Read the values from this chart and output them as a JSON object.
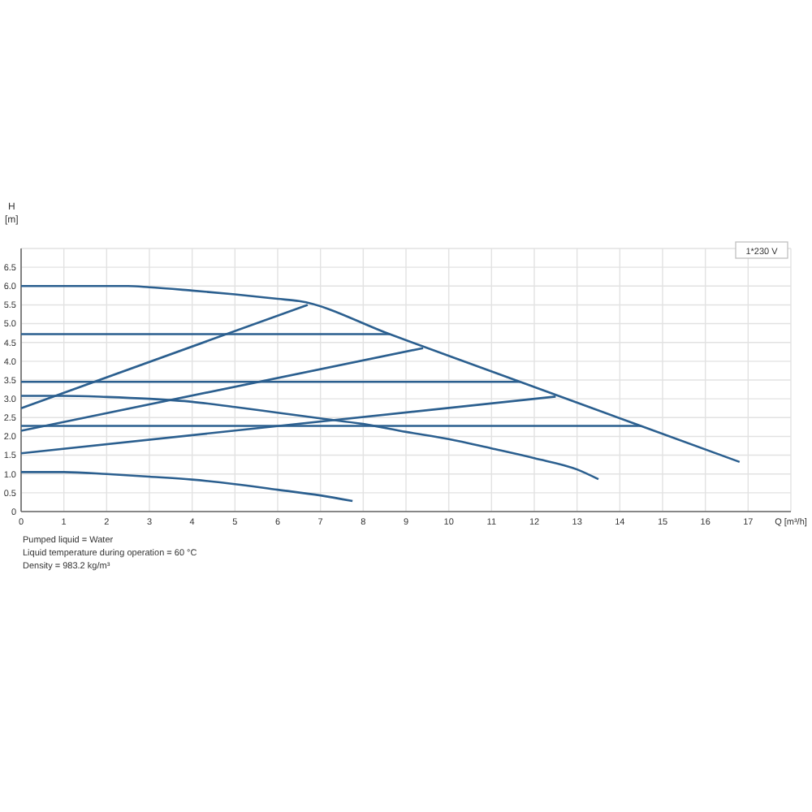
{
  "chart_data": {
    "type": "line",
    "xlabel": "Q [m³/h]",
    "ylabel": "H [m]",
    "xlim": [
      0,
      18
    ],
    "ylim": [
      0,
      7
    ],
    "xticks": [
      0,
      1,
      2,
      3,
      4,
      5,
      6,
      7,
      8,
      9,
      10,
      11,
      12,
      13,
      14,
      15,
      16,
      17
    ],
    "yticks": [
      0,
      0.5,
      {
        "value": 1,
        "label": "1.0"
      },
      1.5,
      {
        "value": 2,
        "label": "2.0"
      },
      2.5,
      {
        "value": 3,
        "label": "3.0"
      },
      3.5,
      {
        "value": 4,
        "label": "4.0"
      },
      4.5,
      {
        "value": 5,
        "label": "5.0"
      },
      5.5,
      {
        "value": 6,
        "label": "6.0"
      },
      6.5
    ],
    "grid": true,
    "marker": "none",
    "line_style": "solid",
    "series": [
      {
        "color": "#2b5f8f",
        "x": [
          0,
          1,
          2,
          2.5,
          3,
          4,
          5,
          6,
          6.5,
          8.62,
          11.67,
          14.49,
          16.8
        ],
        "values": [
          6.0,
          6.0,
          6.0,
          6.0,
          5.97,
          5.88,
          5.78,
          5.66,
          5.6,
          4.72,
          3.45,
          2.28,
          1.32
        ]
      },
      {
        "color": "#2b5f8f",
        "x": [
          0,
          6.7
        ],
        "values": [
          2.75,
          5.5
        ]
      },
      {
        "color": "#2b5f8f",
        "x": [
          0,
          9.4
        ],
        "values": [
          2.15,
          4.35
        ]
      },
      {
        "color": "#2b5f8f",
        "x": [
          0,
          12.5
        ],
        "values": [
          1.55,
          3.06
        ]
      },
      {
        "color": "#2b5f8f",
        "x": [
          0,
          8.62
        ],
        "values": [
          4.72,
          4.72
        ]
      },
      {
        "color": "#2b5f8f",
        "x": [
          0,
          11.67
        ],
        "values": [
          3.45,
          3.45
        ]
      },
      {
        "color": "#2b5f8f",
        "x": [
          0,
          14.49
        ],
        "values": [
          2.28,
          2.28
        ]
      },
      {
        "color": "#2b5f8f",
        "x": [
          0,
          1,
          2,
          3,
          4,
          5,
          6,
          7,
          8,
          9,
          10,
          11,
          12,
          13,
          13.5
        ],
        "values": [
          3.08,
          3.08,
          3.05,
          3.0,
          2.92,
          2.78,
          2.63,
          2.48,
          2.33,
          2.12,
          1.93,
          1.68,
          1.42,
          1.12,
          0.86
        ]
      },
      {
        "color": "#2b5f8f",
        "x": [
          0,
          1,
          2,
          3,
          4,
          5,
          6,
          7,
          7.75
        ],
        "values": [
          1.05,
          1.05,
          1.0,
          0.93,
          0.85,
          0.73,
          0.58,
          0.43,
          0.28
        ]
      }
    ],
    "annotations": [
      "1*230 V",
      "Pumped liquid = Water",
      "Liquid temperature during operation = 60 °C",
      "Density = 983.2 kg/m³"
    ]
  }
}
